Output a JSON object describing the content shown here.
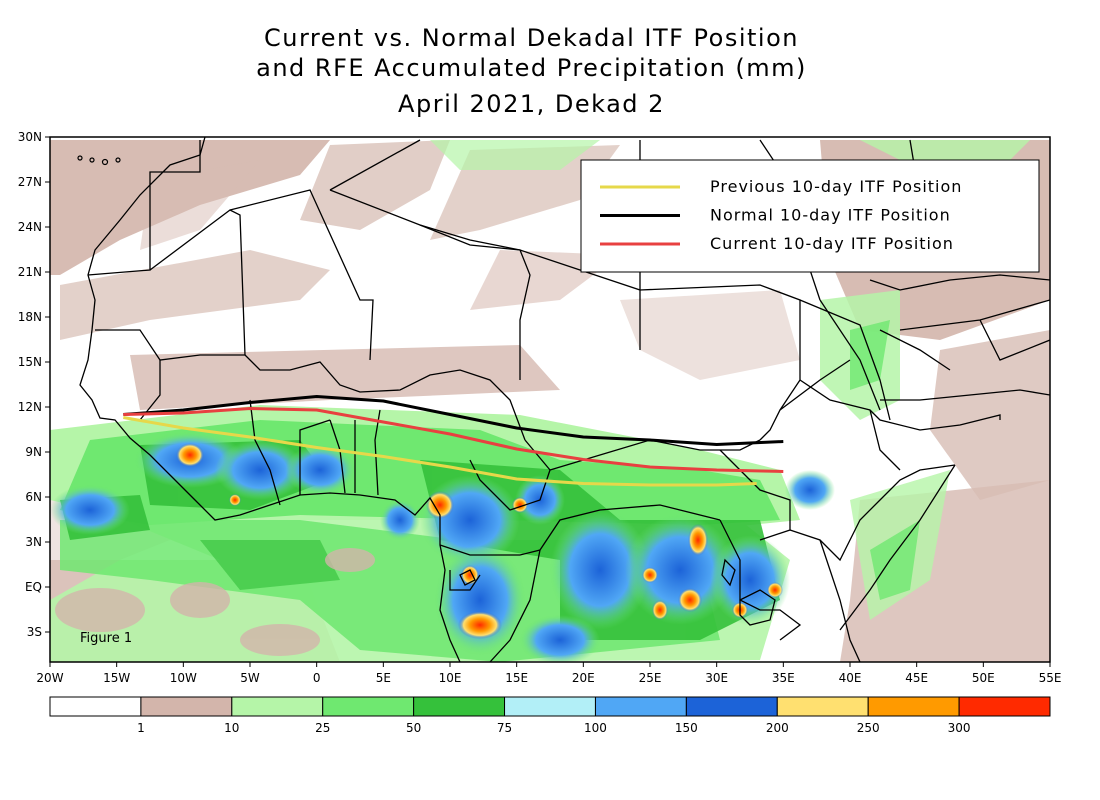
{
  "title": {
    "line1": "Current vs. Normal Dekadal ITF Position",
    "line2": "and RFE Accumulated Precipitation (mm)",
    "line3": "April 2021, Dekad 2"
  },
  "figure_label": "Figure 1",
  "map": {
    "lon_range": [
      -20,
      55
    ],
    "lat_range": [
      -5,
      30
    ],
    "lon_ticks": [
      {
        "value": -20,
        "label": "20W"
      },
      {
        "value": -15,
        "label": "15W"
      },
      {
        "value": -10,
        "label": "10W"
      },
      {
        "value": -5,
        "label": "5W"
      },
      {
        "value": 0,
        "label": "0"
      },
      {
        "value": 5,
        "label": "5E"
      },
      {
        "value": 10,
        "label": "10E"
      },
      {
        "value": 15,
        "label": "15E"
      },
      {
        "value": 20,
        "label": "20E"
      },
      {
        "value": 25,
        "label": "25E"
      },
      {
        "value": 30,
        "label": "30E"
      },
      {
        "value": 35,
        "label": "35E"
      },
      {
        "value": 40,
        "label": "40E"
      },
      {
        "value": 45,
        "label": "45E"
      },
      {
        "value": 50,
        "label": "50E"
      },
      {
        "value": 55,
        "label": "55E"
      }
    ],
    "lat_ticks": [
      {
        "value": 30,
        "label": "30N"
      },
      {
        "value": 27,
        "label": "27N"
      },
      {
        "value": 24,
        "label": "24N"
      },
      {
        "value": 21,
        "label": "21N"
      },
      {
        "value": 18,
        "label": "18N"
      },
      {
        "value": 15,
        "label": "15N"
      },
      {
        "value": 12,
        "label": "12N"
      },
      {
        "value": 9,
        "label": "9N"
      },
      {
        "value": 6,
        "label": "6N"
      },
      {
        "value": 3,
        "label": "3N"
      },
      {
        "value": 0,
        "label": "EQ"
      },
      {
        "value": -3,
        "label": "3S"
      }
    ]
  },
  "legend": [
    {
      "label": "Previous 10-day ITF Position",
      "color": "#e6d84a"
    },
    {
      "label": "Normal 10-day ITF Position",
      "color": "#000000"
    },
    {
      "label": "Current 10-day ITF Position",
      "color": "#e84040"
    }
  ],
  "itf_lines": [
    {
      "name": "previous",
      "color": "#e6d84a",
      "points": [
        [
          -14.5,
          11.3
        ],
        [
          -10,
          10.6
        ],
        [
          -5,
          10
        ],
        [
          0,
          9.3
        ],
        [
          5,
          8.7
        ],
        [
          10,
          8
        ],
        [
          15,
          7.2
        ],
        [
          20,
          6.9
        ],
        [
          25,
          6.8
        ],
        [
          30,
          6.8
        ],
        [
          33,
          6.9
        ]
      ]
    },
    {
      "name": "normal",
      "color": "#000000",
      "points": [
        [
          -14.5,
          11.5
        ],
        [
          -10,
          11.8
        ],
        [
          -5,
          12.3
        ],
        [
          0,
          12.7
        ],
        [
          5,
          12.4
        ],
        [
          10,
          11.5
        ],
        [
          15,
          10.6
        ],
        [
          20,
          10
        ],
        [
          25,
          9.8
        ],
        [
          30,
          9.5
        ],
        [
          35,
          9.7
        ]
      ]
    },
    {
      "name": "current",
      "color": "#e84040",
      "points": [
        [
          -14.5,
          11.5
        ],
        [
          -10,
          11.6
        ],
        [
          -5,
          11.9
        ],
        [
          0,
          11.8
        ],
        [
          5,
          11
        ],
        [
          10,
          10.2
        ],
        [
          15,
          9.2
        ],
        [
          20,
          8.5
        ],
        [
          25,
          8
        ],
        [
          30,
          7.8
        ],
        [
          35,
          7.7
        ]
      ]
    }
  ],
  "colorbar": {
    "colors": [
      "#ffffff",
      "#d3b5ab",
      "#b5f5a8",
      "#6fe870",
      "#35c13b",
      "#b2eff7",
      "#50a7f5",
      "#1c63d8",
      "#ffe070",
      "#ff9a00",
      "#ff2a00"
    ],
    "labels": [
      "1",
      "10",
      "25",
      "50",
      "75",
      "100",
      "150",
      "200",
      "250",
      "300"
    ]
  }
}
